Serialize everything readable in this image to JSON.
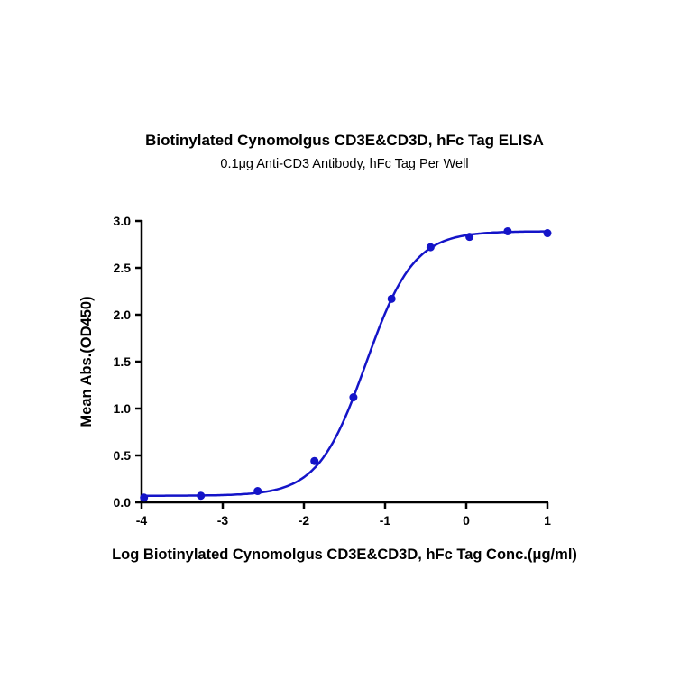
{
  "chart_data": {
    "type": "scatter",
    "title": "Biotinylated Cynomolgus CD3E&CD3D, hFc Tag ELISA",
    "subtitle": "0.1μg Anti-CD3 Antibody, hFc Tag Per Well",
    "xlabel": "Log Biotinylated Cynomolgus CD3E&CD3D, hFc Tag Conc.(μg/ml)",
    "ylabel": "Mean Abs.(OD450)",
    "xlim": [
      -4,
      1
    ],
    "ylim": [
      0,
      3.0
    ],
    "xticks": [
      "-4",
      "-3",
      "-2",
      "-1",
      "0",
      "1"
    ],
    "yticks": [
      "0.0",
      "0.5",
      "1.0",
      "1.5",
      "2.0",
      "2.5",
      "3.0"
    ],
    "grid": false,
    "fit": "sigmoidal curve",
    "color": "#1414c8",
    "series": [
      {
        "x": [
          -3.97,
          -3.27,
          -2.57,
          -1.87,
          -1.39,
          -0.92,
          -0.44,
          0.04,
          0.51,
          1.0
        ],
        "y": [
          0.05,
          0.07,
          0.12,
          0.44,
          1.12,
          2.17,
          2.72,
          2.83,
          2.89,
          2.87
        ]
      }
    ]
  }
}
